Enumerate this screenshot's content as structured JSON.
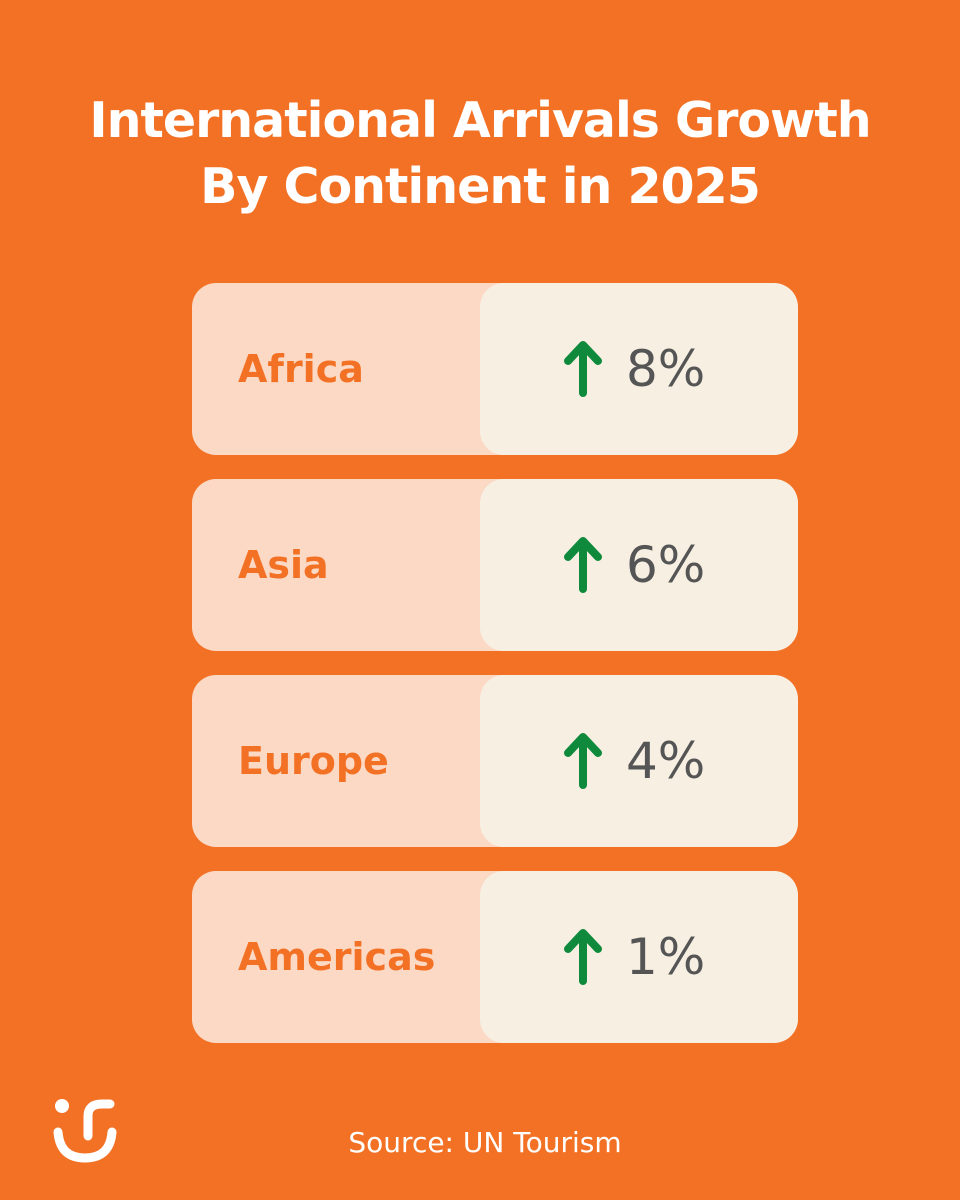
{
  "header": {
    "title": [
      "International Arrivals Growth",
      "By Continent in 2025"
    ]
  },
  "rows": [
    {
      "label": "Africa",
      "value": "8%"
    },
    {
      "label": "Asia",
      "value": "6%"
    },
    {
      "label": "Europe",
      "value": "4%"
    },
    {
      "label": "Americas",
      "value": "1%"
    }
  ],
  "footer": {
    "source": "Source: UN Tourism"
  }
}
